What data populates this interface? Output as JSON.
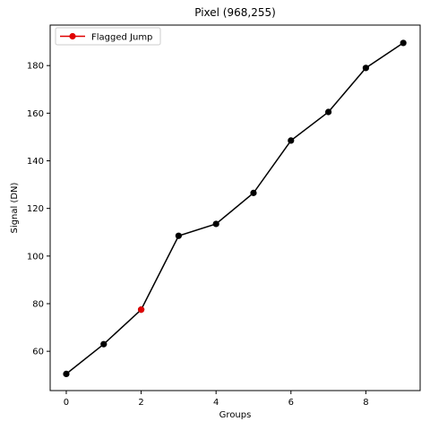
{
  "chart_data": {
    "type": "line",
    "title": "Pixel (968,255)",
    "xlabel": "Groups",
    "ylabel": "Signal (DN)",
    "xlim": [
      -0.43,
      9.45
    ],
    "ylim": [
      43.5,
      197
    ],
    "xticks": [
      0,
      2,
      4,
      6,
      8
    ],
    "yticks": [
      60,
      80,
      100,
      120,
      140,
      160,
      180
    ],
    "grid": false,
    "legend_position": "top-left",
    "series": [
      {
        "color": "#000000",
        "x": [
          0,
          1,
          2,
          3,
          4,
          5,
          6,
          7,
          8,
          9
        ],
        "values": [
          50.5,
          63,
          77.5,
          108.5,
          113.5,
          126.5,
          148.5,
          160.5,
          179,
          189.5
        ]
      },
      {
        "name": "Flagged Jump",
        "color": "#e00000",
        "x": [
          2
        ],
        "values": [
          77.5
        ]
      }
    ]
  }
}
